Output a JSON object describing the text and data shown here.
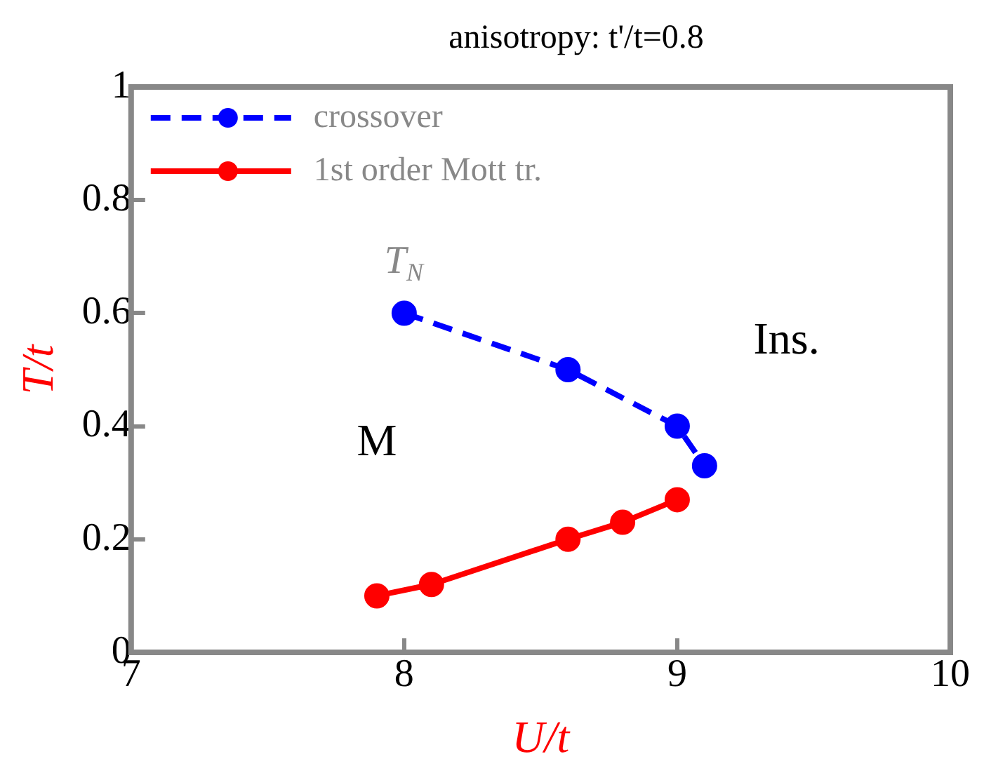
{
  "chart_data": {
    "type": "line",
    "title": "anisotropy: t'/t=0.8",
    "xlabel": "U/t",
    "ylabel": "T/t",
    "xlim": [
      7,
      10
    ],
    "xticks": [
      7,
      8,
      9,
      10
    ],
    "ylim": [
      0,
      1
    ],
    "yticks": [
      0,
      0.2,
      0.4,
      0.6,
      0.8,
      1
    ],
    "grid": false,
    "legend": "top left",
    "marker": "circle",
    "series": [
      {
        "name": "crossover",
        "color": "#0000ff",
        "line_style": "dashed",
        "x": [
          8.0,
          8.6,
          9.0,
          9.1
        ],
        "values": [
          0.6,
          0.5,
          0.4,
          0.33
        ]
      },
      {
        "name": "1st order Mott tr.",
        "color": "#ff0000",
        "line_style": "solid",
        "x": [
          7.9,
          8.1,
          8.6,
          8.8,
          9.0
        ],
        "values": [
          0.1,
          0.12,
          0.2,
          0.23,
          0.27
        ]
      }
    ],
    "annotations": [
      "T$_{N}$",
      "M",
      "Ins."
    ]
  }
}
